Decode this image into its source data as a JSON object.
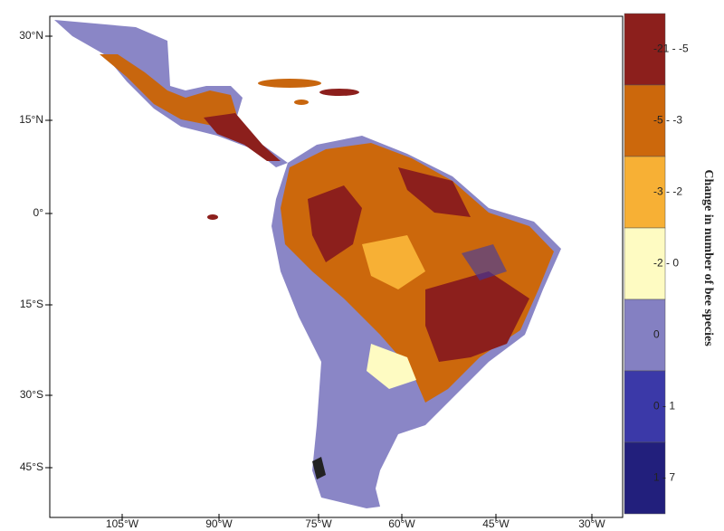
{
  "map": {
    "lat_labels": [
      "30°N",
      "15°N",
      "0°",
      "15°S",
      "30°S",
      "45°S"
    ],
    "lon_labels": [
      "105°W",
      "90°W",
      "75°W",
      "60°W",
      "45°W",
      "30°W"
    ],
    "legend": {
      "title": "Change in number of bee species",
      "classes": [
        {
          "label": "-21 - -5",
          "color": "#8c1f1c"
        },
        {
          "label": "-5 - -3",
          "color": "#cc680c"
        },
        {
          "label": "-3 - -2",
          "color": "#f7b035"
        },
        {
          "label": "-2 - 0",
          "color": "#fefbc2"
        },
        {
          "label": "0",
          "color": "#8480c2"
        },
        {
          "label": "0 - 1",
          "color": "#3b39a8"
        },
        {
          "label": "1 - 7",
          "color": "#221f7c"
        }
      ]
    }
  }
}
